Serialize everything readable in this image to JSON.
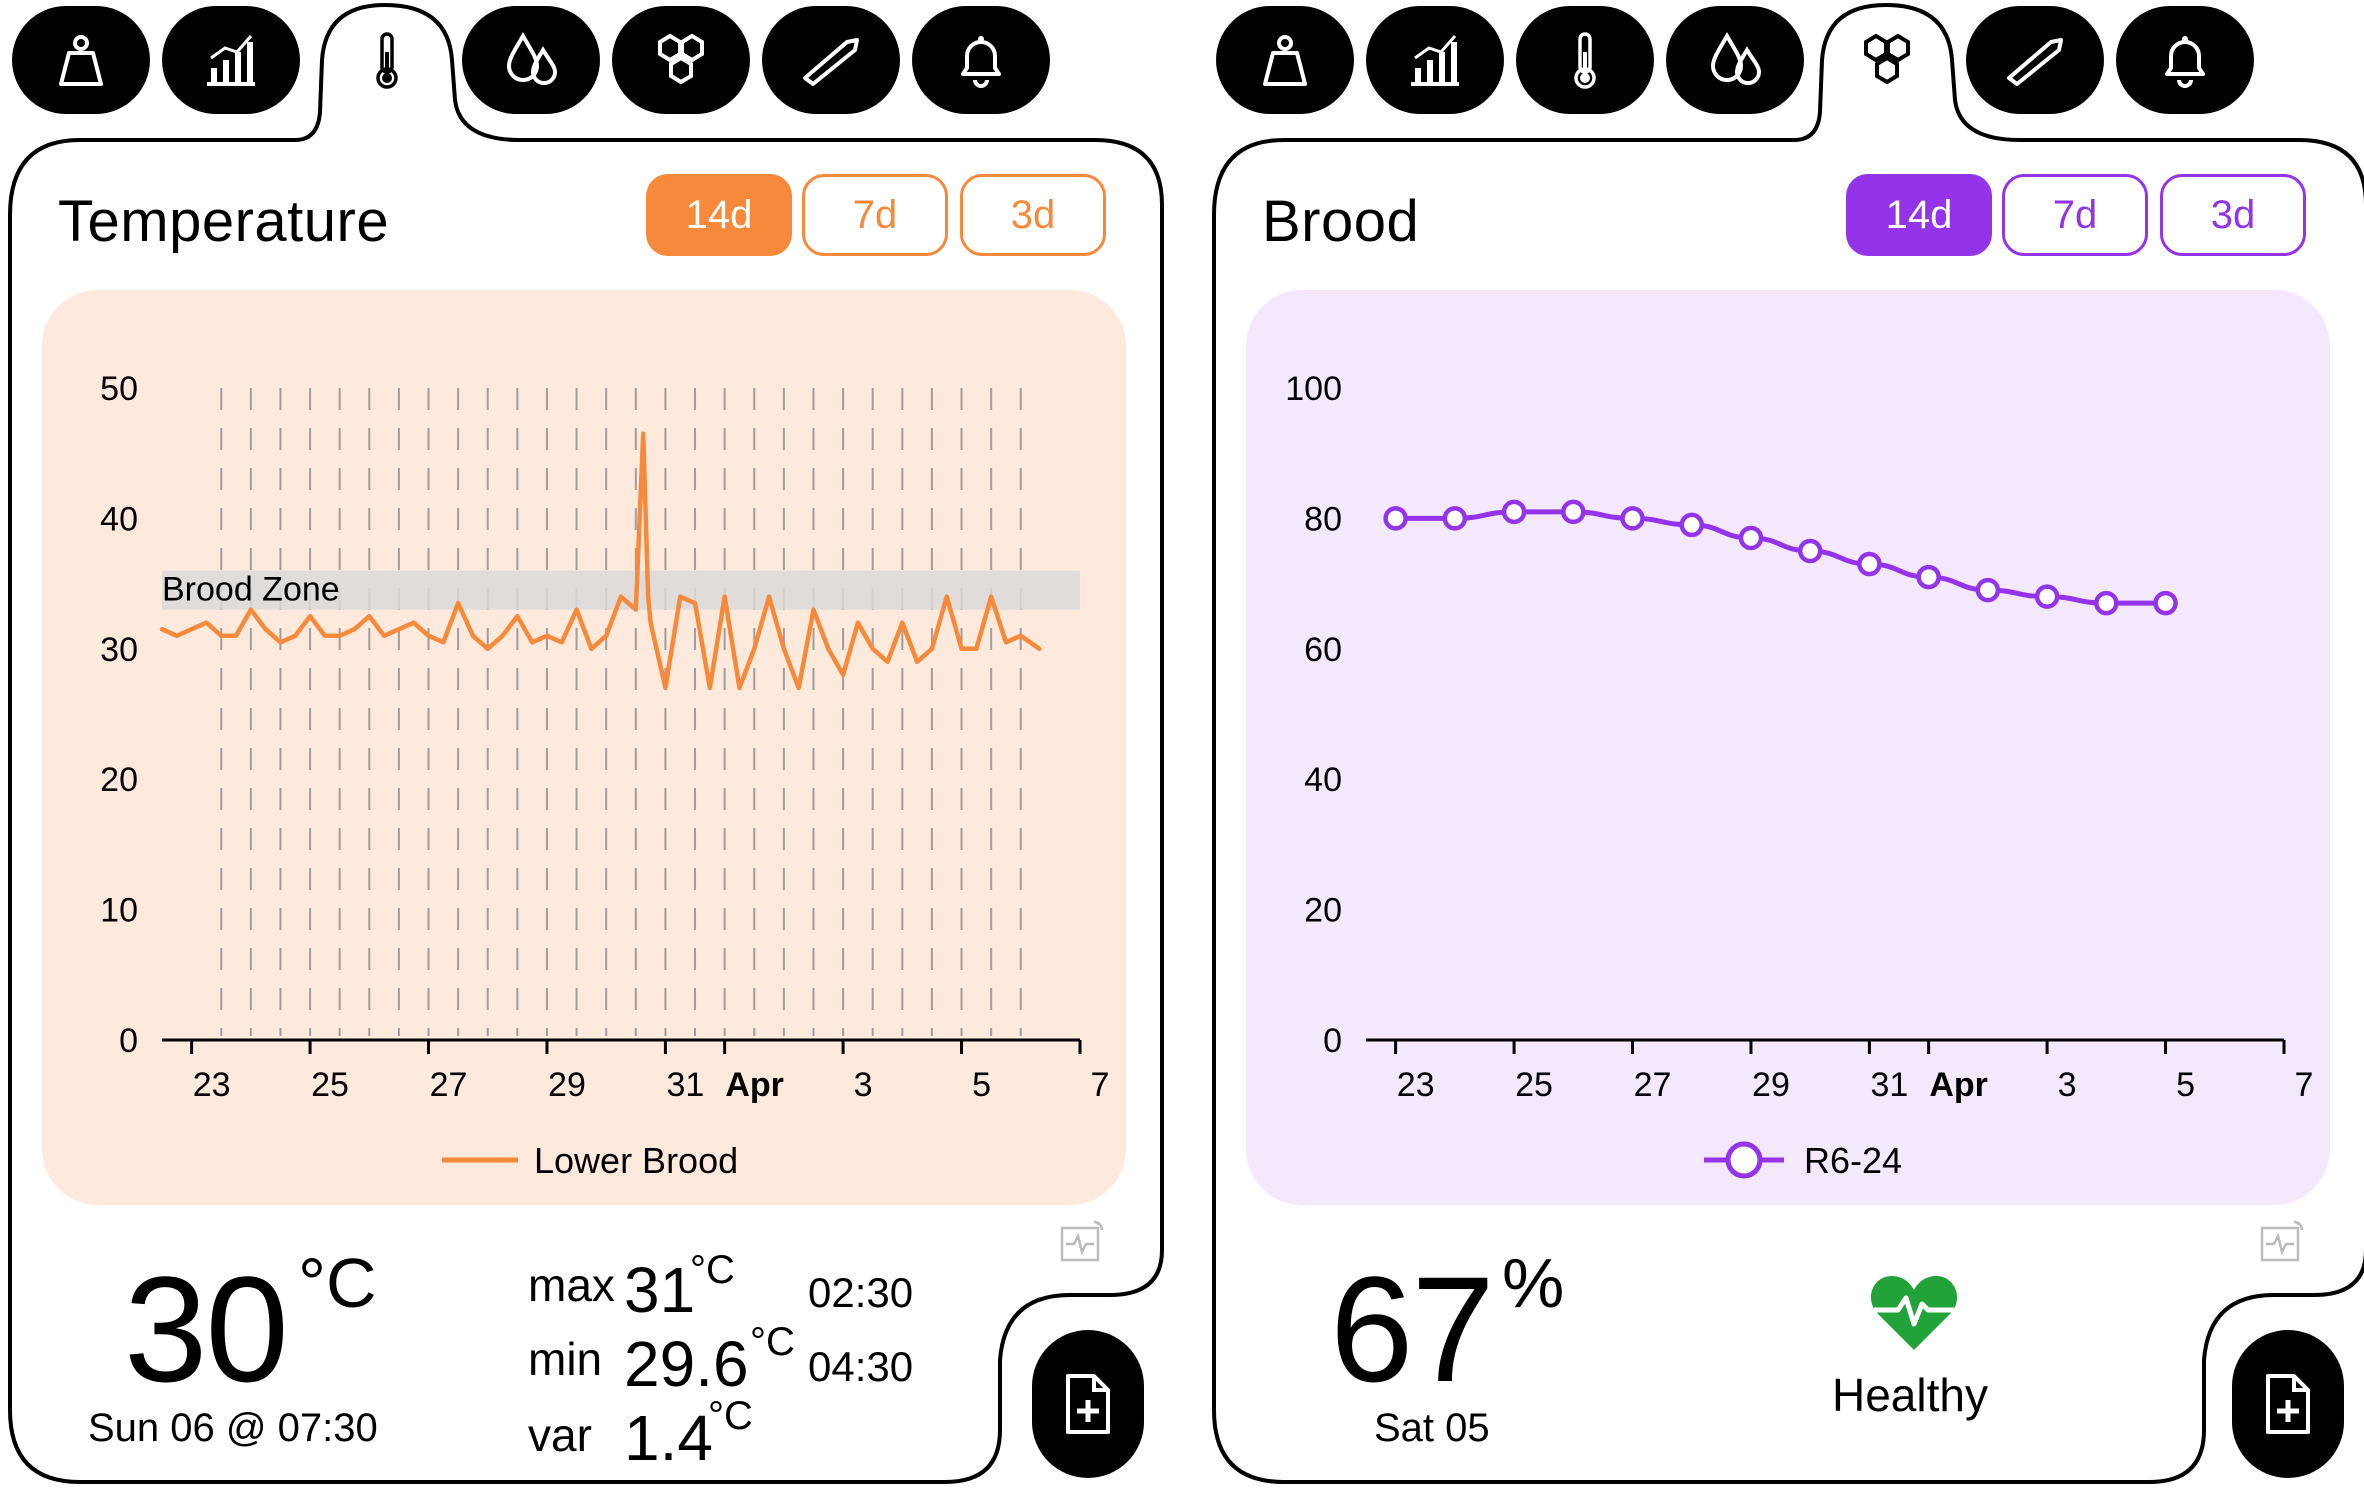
{
  "left_panel": {
    "title": "Temperature",
    "accent": "#f7893a",
    "chart_bg": "#fdeadc",
    "segments": [
      "14d",
      "7d",
      "3d"
    ],
    "selected_segment": "14d",
    "active_tab": "temperature",
    "tabs": [
      "scale-icon",
      "chart-icon",
      "thermometer-icon",
      "droplets-icon",
      "honeycomb-icon",
      "hive-tool-icon",
      "bell-icon"
    ],
    "band_label": "Brood Zone",
    "legend": "Lower Brood",
    "current_value": "30",
    "current_unit": "°C",
    "current_time": "Sun 06 @ 07:30",
    "stats": {
      "max_label": "max",
      "max_value": "31",
      "max_unit": "°C",
      "max_time": "02:30",
      "min_label": "min",
      "min_value": "29.6",
      "min_unit": "°C",
      "min_time": "04:30",
      "var_label": "var",
      "var_value": "1.4",
      "var_unit": "°C"
    }
  },
  "right_panel": {
    "title": "Brood",
    "accent": "#9333ea",
    "chart_bg": "#f4e8fc",
    "segments": [
      "14d",
      "7d",
      "3d"
    ],
    "selected_segment": "14d",
    "active_tab": "honeycomb",
    "tabs": [
      "scale-icon",
      "chart-icon",
      "thermometer-icon",
      "droplets-icon",
      "honeycomb-icon",
      "hive-tool-icon",
      "bell-icon"
    ],
    "legend": "R6-24",
    "current_value": "67",
    "current_unit": "%",
    "current_date": "Sat 05",
    "status": "Healthy",
    "status_color": "#22a33a"
  },
  "chart_data": [
    {
      "type": "line",
      "series": [
        {
          "name": "Lower Brood",
          "x": [
            "2024-03-22T12:00",
            "2024-03-22T18:00",
            "2024-03-23T00:00",
            "2024-03-23T06:00",
            "2024-03-23T12:00",
            "2024-03-23T18:00",
            "2024-03-24T00:00",
            "2024-03-24T06:00",
            "2024-03-24T12:00",
            "2024-03-24T18:00",
            "2024-03-25T00:00",
            "2024-03-25T06:00",
            "2024-03-25T12:00",
            "2024-03-25T18:00",
            "2024-03-26T00:00",
            "2024-03-26T06:00",
            "2024-03-26T12:00",
            "2024-03-26T18:00",
            "2024-03-27T00:00",
            "2024-03-27T06:00",
            "2024-03-27T12:00",
            "2024-03-27T18:00",
            "2024-03-28T00:00",
            "2024-03-28T06:00",
            "2024-03-28T12:00",
            "2024-03-28T18:00",
            "2024-03-29T00:00",
            "2024-03-29T06:00",
            "2024-03-29T12:00",
            "2024-03-29T18:00",
            "2024-03-30T00:00",
            "2024-03-30T06:00",
            "2024-03-30T12:00",
            "2024-03-30T15:00",
            "2024-03-30T17:00",
            "2024-03-30T18:00",
            "2024-03-31T00:00",
            "2024-03-31T06:00",
            "2024-03-31T12:00",
            "2024-03-31T18:00",
            "2024-04-01T00:00",
            "2024-04-01T06:00",
            "2024-04-01T12:00",
            "2024-04-01T18:00",
            "2024-04-02T00:00",
            "2024-04-02T06:00",
            "2024-04-02T12:00",
            "2024-04-02T18:00",
            "2024-04-03T00:00",
            "2024-04-03T06:00",
            "2024-04-03T12:00",
            "2024-04-03T18:00",
            "2024-04-04T00:00",
            "2024-04-04T06:00",
            "2024-04-04T12:00",
            "2024-04-04T18:00",
            "2024-04-05T00:00",
            "2024-04-05T06:00",
            "2024-04-05T12:00",
            "2024-04-05T18:00",
            "2024-04-06T00:00",
            "2024-04-06T07:30"
          ],
          "y": [
            31.5,
            31,
            31.5,
            32,
            31,
            31,
            33,
            31.5,
            30.5,
            31,
            32.5,
            31,
            31,
            31.5,
            32.5,
            31,
            31.5,
            32,
            31,
            30.5,
            33.5,
            31,
            30,
            31,
            32.5,
            30.5,
            31,
            30.5,
            33,
            30,
            31,
            34,
            33,
            46.5,
            34,
            32,
            27,
            34,
            33.5,
            27,
            34,
            27,
            30,
            34,
            30,
            27,
            33,
            30,
            28,
            32,
            30,
            29,
            32,
            29,
            30,
            34,
            30,
            30,
            34,
            30.5,
            31,
            30
          ]
        }
      ],
      "band": {
        "label": "Brood Zone",
        "from": 33,
        "to": 36
      },
      "xlim": [
        "2024-03-22T12:00",
        "2024-04-07T00:00"
      ],
      "x_ticks": [
        "23",
        "25",
        "27",
        "29",
        "31",
        "Apr",
        "3",
        "5",
        "7"
      ],
      "ylim": [
        0,
        50
      ],
      "y_ticks": [
        0,
        10,
        20,
        30,
        40,
        50
      ],
      "grid": "vertical-dashed",
      "legend_position": "bottom"
    },
    {
      "type": "line",
      "series": [
        {
          "name": "R6-24",
          "x": [
            "2024-03-23",
            "2024-03-24",
            "2024-03-25",
            "2024-03-26",
            "2024-03-27",
            "2024-03-28",
            "2024-03-29",
            "2024-03-30",
            "2024-03-31",
            "2024-04-01",
            "2024-04-02",
            "2024-04-03",
            "2024-04-04",
            "2024-04-05"
          ],
          "y": [
            80,
            80,
            81,
            81,
            80,
            79,
            77,
            75,
            73,
            71,
            69,
            68,
            67,
            67
          ]
        }
      ],
      "xlim": [
        "2024-03-22T12:00",
        "2024-04-07T00:00"
      ],
      "x_ticks": [
        "23",
        "25",
        "27",
        "29",
        "31",
        "Apr",
        "3",
        "5",
        "7"
      ],
      "ylim": [
        0,
        100
      ],
      "y_ticks": [
        0,
        20,
        40,
        60,
        80,
        100
      ],
      "grid": "none",
      "legend_position": "bottom"
    }
  ]
}
